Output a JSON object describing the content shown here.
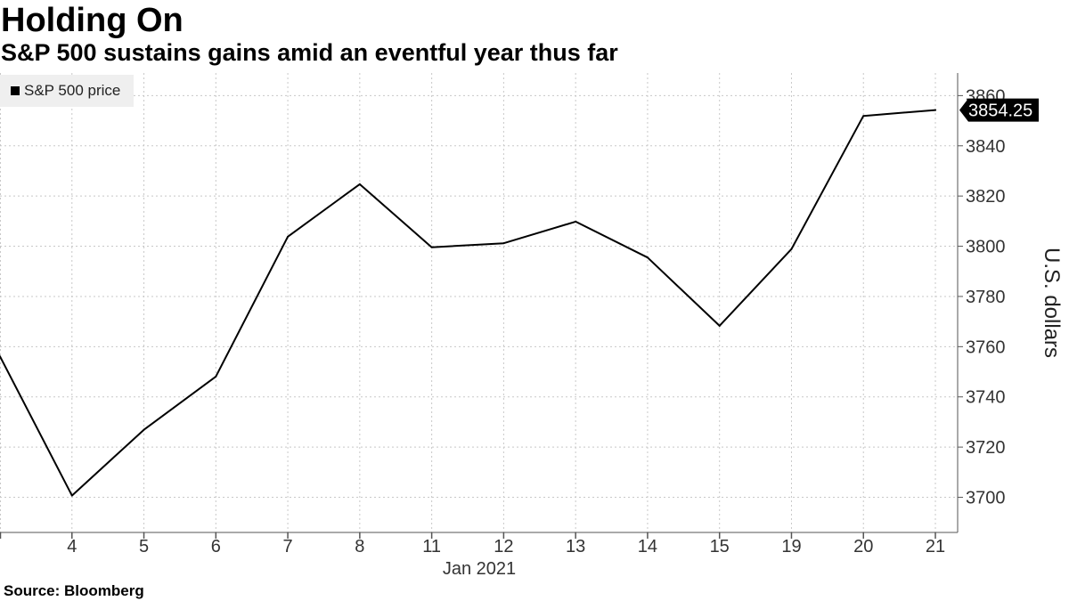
{
  "chart_data": {
    "type": "line",
    "title": "Holding On",
    "subtitle": "S&P 500 sustains gains amid an eventful year thus far",
    "source": "Source: Bloomberg",
    "xlabel": "Jan 2021",
    "ylabel": "U.S. dollars",
    "x": [
      "2020-12-31",
      "2021-01-04",
      "2021-01-05",
      "2021-01-06",
      "2021-01-07",
      "2021-01-08",
      "2021-01-11",
      "2021-01-12",
      "2021-01-13",
      "2021-01-14",
      "2021-01-15",
      "2021-01-19",
      "2021-01-20",
      "2021-01-21"
    ],
    "x_tick_labels": [
      "",
      "4",
      "5",
      "6",
      "7",
      "8",
      "11",
      "12",
      "13",
      "14",
      "15",
      "19",
      "20",
      "21"
    ],
    "y_ticks": [
      3700,
      3720,
      3740,
      3760,
      3780,
      3800,
      3820,
      3840,
      3860
    ],
    "ylim": [
      3686,
      3869
    ],
    "y_axis": "right",
    "grid": true,
    "legend_position": "top-left",
    "series": [
      {
        "name": "S&P 500 price",
        "color": "#000000",
        "values": [
          3756.1,
          3700.7,
          3726.9,
          3748.1,
          3803.8,
          3824.7,
          3799.6,
          3801.2,
          3809.8,
          3795.5,
          3768.3,
          3798.9,
          3851.9,
          3854.25
        ]
      }
    ],
    "last_value_label": "3854.25"
  },
  "colors": {
    "background": "#ffffff",
    "text": "#000000",
    "legend_background": "#efefef",
    "gridline": "#c8c8c8",
    "axis": "#555555",
    "value_label_background": "#000000",
    "value_label_text": "#ffffff"
  }
}
